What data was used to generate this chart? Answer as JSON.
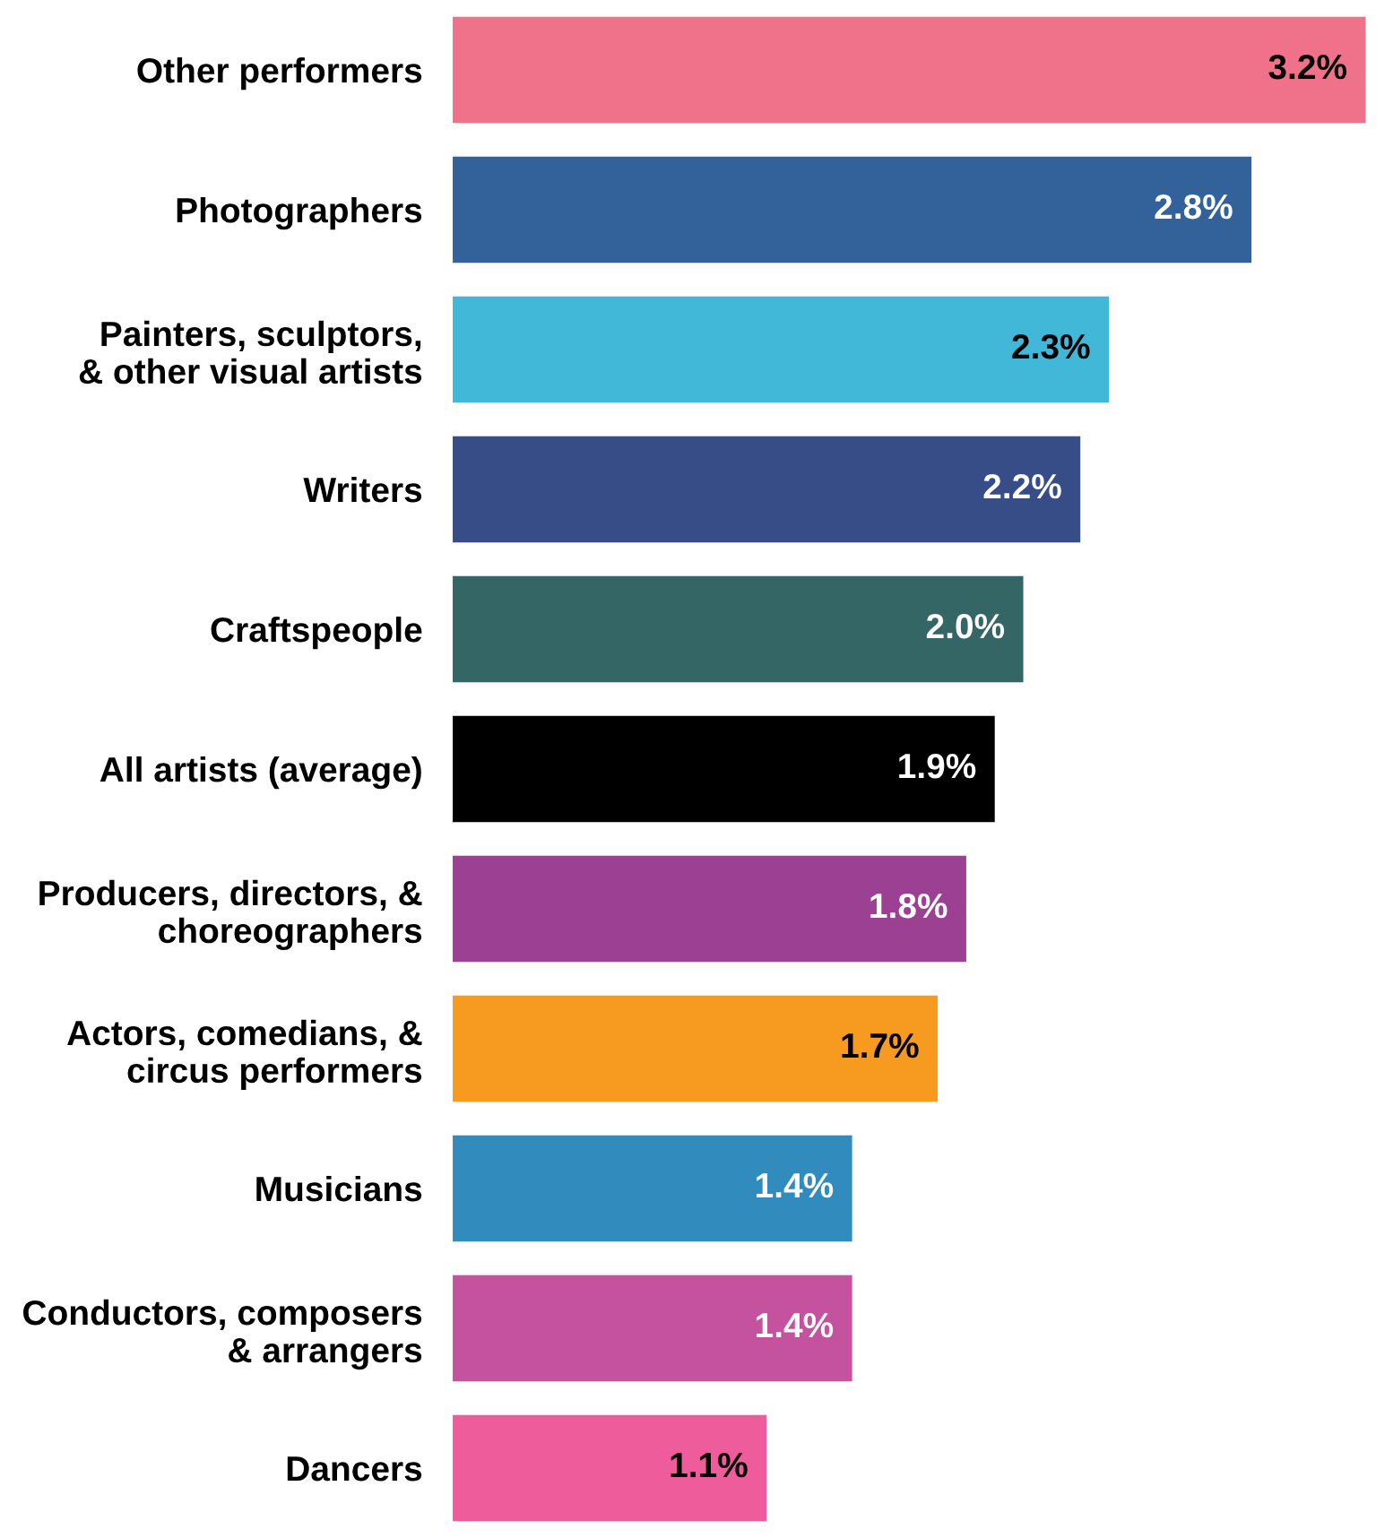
{
  "chart_data": {
    "type": "bar",
    "orientation": "horizontal",
    "categories": [
      "Other performers",
      "Photographers",
      "Painters, sculptors,\n& other visual artists",
      "Writers",
      "Craftspeople",
      "All artists (average)",
      "Producers, directors, &\nchoreographers",
      "Actors, comedians, &\ncircus performers",
      "Musicians",
      "Conductors, composers\n& arrangers",
      "Dancers"
    ],
    "values": [
      3.2,
      2.8,
      2.3,
      2.2,
      2.0,
      1.9,
      1.8,
      1.7,
      1.4,
      1.4,
      1.1
    ],
    "value_labels": [
      "3.2%",
      "2.8%",
      "2.3%",
      "2.2%",
      "2.0%",
      "1.9%",
      "1.8%",
      "1.7%",
      "1.4%",
      "1.4%",
      "1.1%"
    ],
    "colors": [
      "#f0728a",
      "#336199",
      "#42b8d8",
      "#364d87",
      "#336665",
      "#000000",
      "#9c4093",
      "#f79a20",
      "#318bbd",
      "#c4529f",
      "#ee5c9c"
    ],
    "grid": false,
    "legend": false
  }
}
